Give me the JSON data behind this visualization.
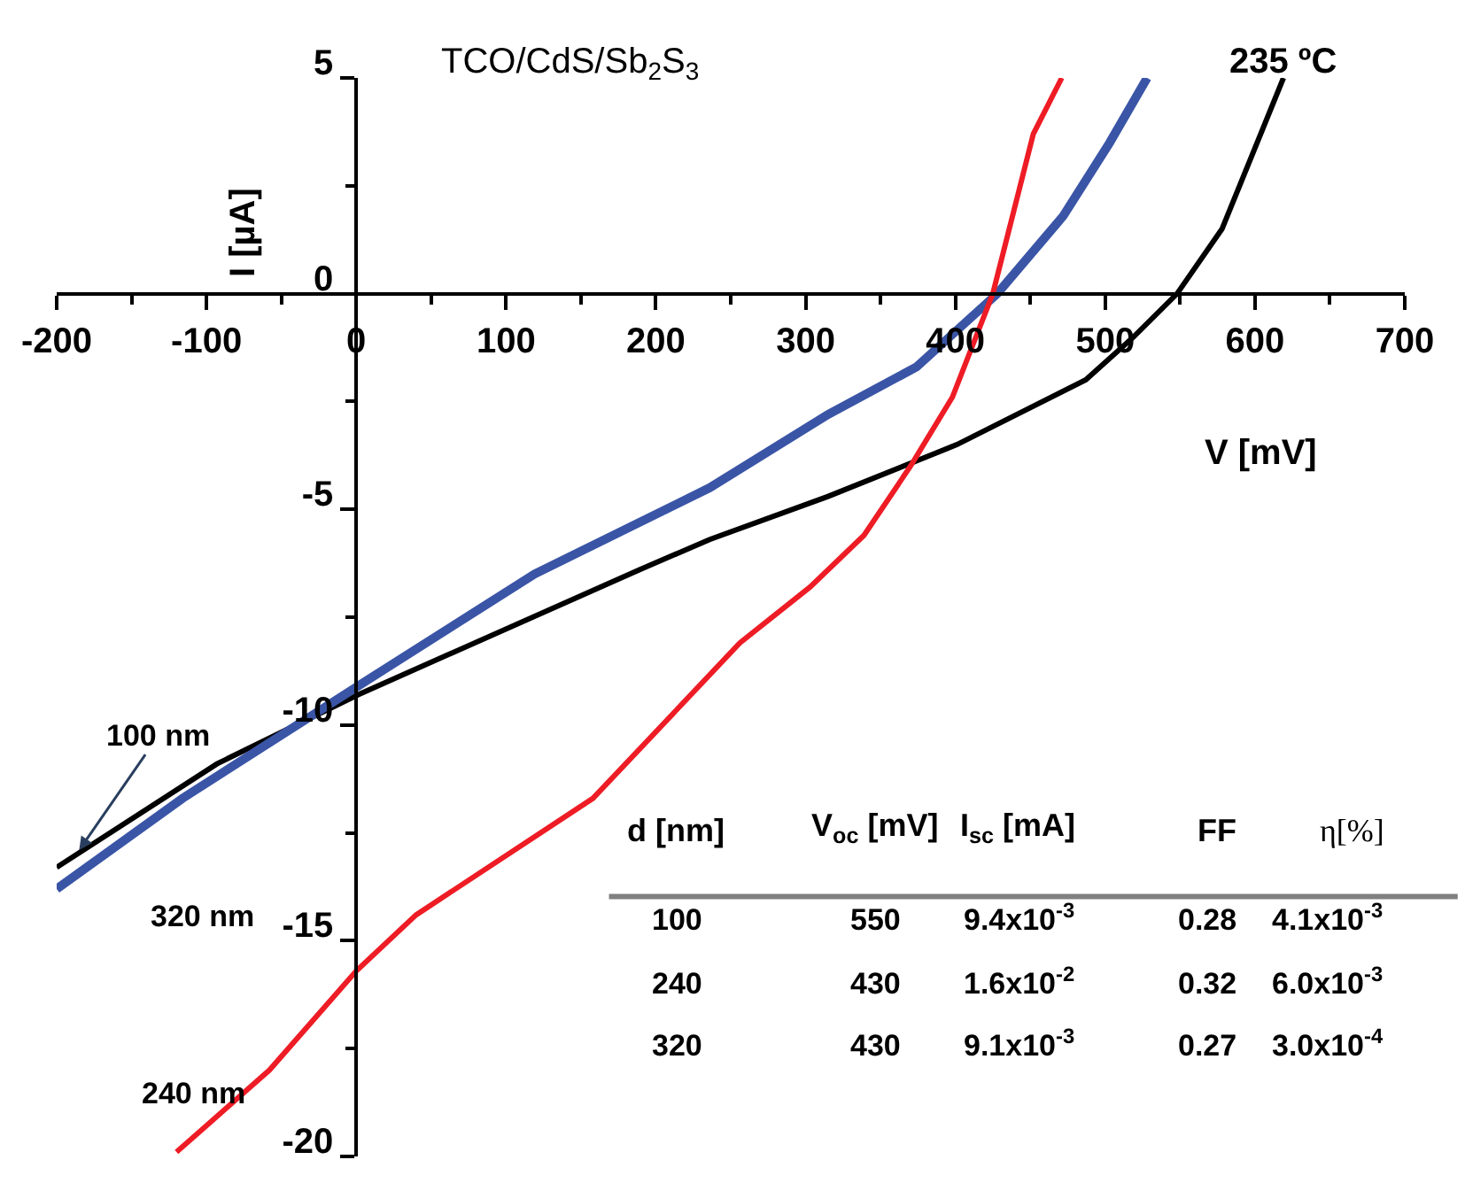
{
  "chart_data": {
    "type": "line",
    "title": "TCO/CdS/Sb$_{2}$S$_{3}$",
    "subtitle": "235 ºC",
    "xlabel": "V [mV]",
    "ylabel": "I [µA]",
    "xlim": [
      -200,
      700
    ],
    "xticks": [
      -200,
      -100,
      0,
      100,
      200,
      300,
      400,
      500,
      600,
      700
    ],
    "ylim": [
      -20,
      5
    ],
    "yticks": [
      -20,
      -15,
      -10,
      -5,
      0,
      5
    ],
    "legend": false,
    "marker": "none",
    "line_style": "solid",
    "series": [
      {
        "name": "100 nm",
        "color": "#000000",
        "x": [
          -200,
          -93,
          1,
          189,
          236,
          315,
          401,
          487,
          519,
          548,
          578,
          605,
          619
        ],
        "values": [
          -13.3,
          -10.9,
          -9.3,
          -6.4,
          -5.7,
          -4.7,
          -3.5,
          -2.0,
          -1.0,
          0,
          1.5,
          3.8,
          5.0
        ]
      },
      {
        "name": "320 nm",
        "color": "#3a55a6",
        "x": [
          -200,
          -116,
          1,
          119,
          236,
          315,
          374,
          428,
          472,
          503,
          528
        ],
        "values": [
          -13.8,
          -11.7,
          -9.1,
          -6.5,
          -4.5,
          -2.8,
          -1.7,
          0,
          1.8,
          3.5,
          5.0
        ]
      },
      {
        "name": "240 nm",
        "color": "#ee1c25",
        "x": [
          -120,
          -58,
          0,
          40,
          158,
          256,
          303,
          339,
          370,
          398,
          425,
          452,
          471
        ],
        "values": [
          -19.9,
          -18.0,
          -15.7,
          -14.4,
          -11.7,
          -8.1,
          -6.8,
          -5.6,
          -4.0,
          -2.4,
          0,
          3.7,
          5.0
        ]
      }
    ],
    "annotations": [
      "d [nm]",
      "V$_{oc}$ [mV]",
      "I$_{sc}$ [mA]",
      "FF",
      "η[%]",
      "100",
      "550",
      "9.4x10$^{-3}$",
      "0.28",
      "4.1x10$^{-3}$",
      "240",
      "430",
      "1.6x10$^{-2}$",
      "0.32",
      "6.0x10$^{-3}$",
      "320",
      "430",
      "9.1x10$^{-3}$",
      "0.27",
      "3.0x10$^{-4}$"
    ]
  }
}
